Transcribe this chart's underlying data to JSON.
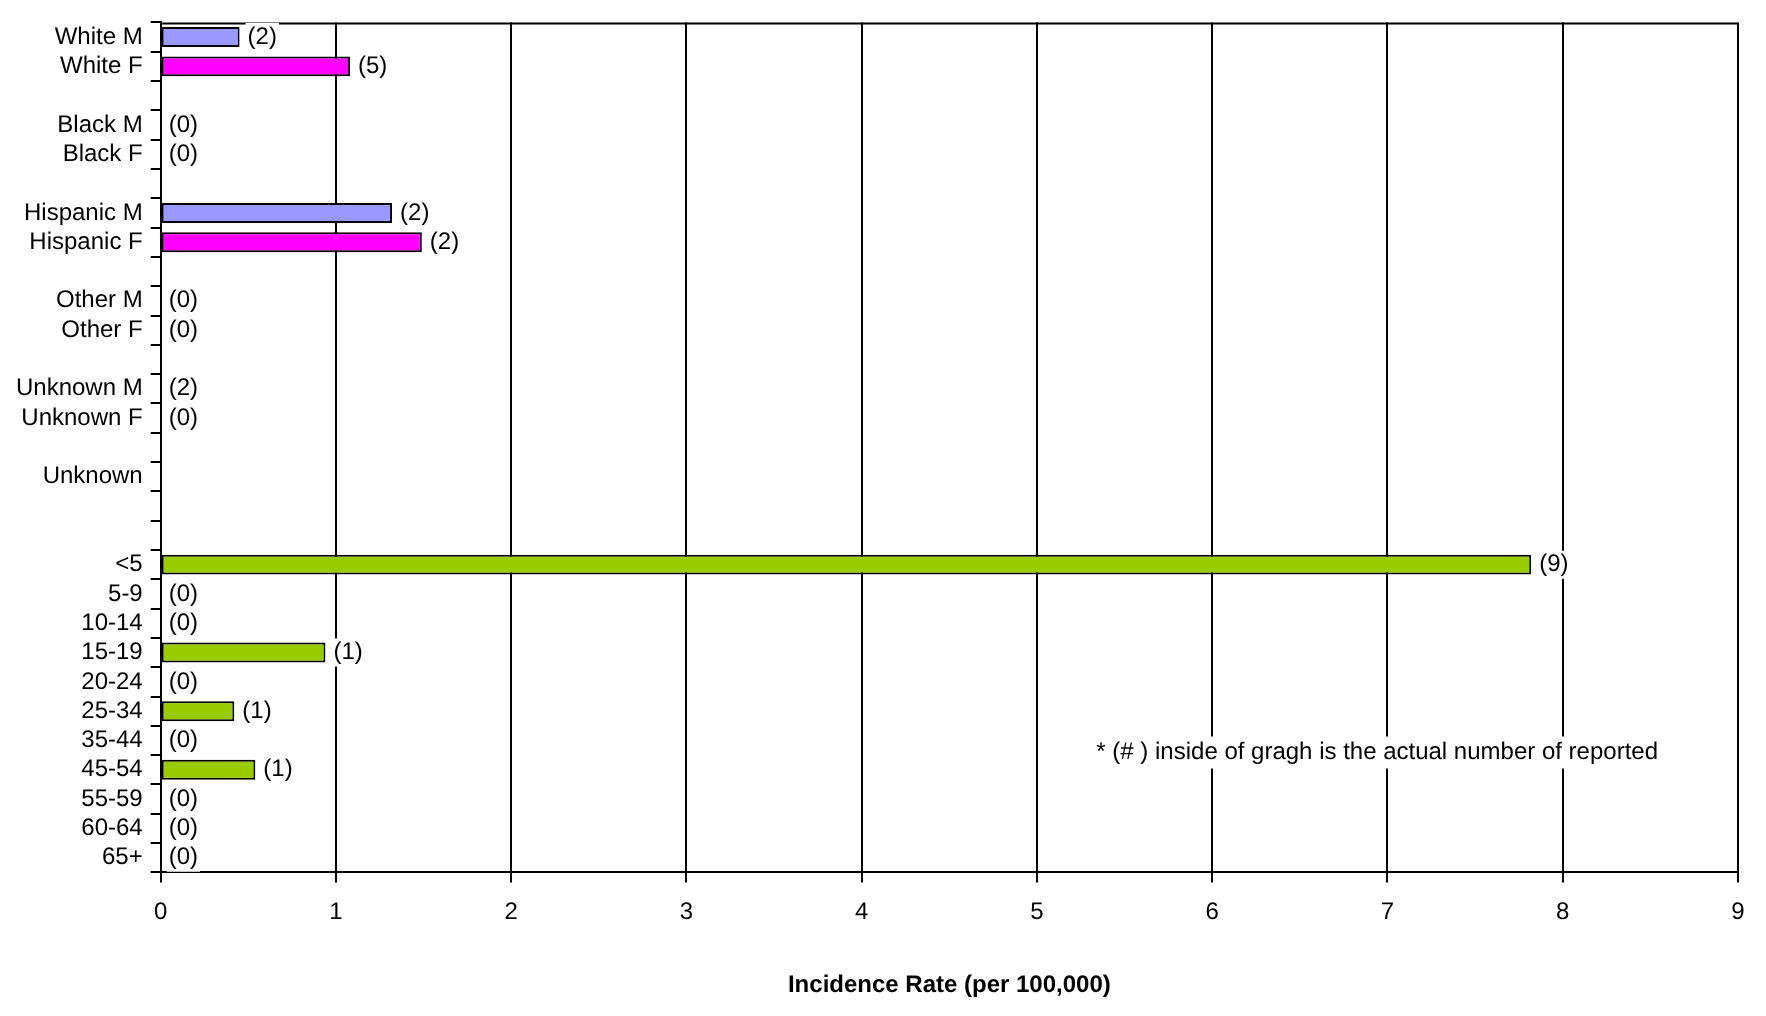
{
  "chart_data": {
    "type": "bar",
    "orientation": "horizontal",
    "xlabel": "Incidence Rate (per 100,000)",
    "categories": [
      "White M",
      "White F",
      null,
      "Black M",
      "Black F",
      null,
      "Hispanic M",
      "Hispanic F",
      null,
      "Other M",
      "Other F",
      null,
      "Unknown M",
      "Unknown F",
      null,
      "Unknown",
      null,
      null,
      "<5",
      "5-9",
      "10-14",
      "15-19",
      "20-24",
      "25-34",
      "35-44",
      "45-54",
      "55-59",
      "60-64",
      "65+"
    ],
    "values": [
      0.45,
      1.08,
      null,
      0,
      0,
      null,
      1.32,
      1.49,
      null,
      0,
      0,
      null,
      0,
      0,
      null,
      null,
      null,
      null,
      7.82,
      0,
      0,
      0.94,
      0,
      0.42,
      0,
      0.54,
      0,
      0,
      0
    ],
    "colors": [
      "#9999ff",
      "#ff00ff",
      null,
      "#9999ff",
      "#ff00ff",
      null,
      "#9999ff",
      "#ff00ff",
      null,
      "#9999ff",
      "#ff00ff",
      null,
      "#9999ff",
      "#ff00ff",
      null,
      "#99cc00",
      null,
      null,
      "#99cc00",
      "#99cc00",
      "#99cc00",
      "#99cc00",
      "#99cc00",
      "#99cc00",
      "#99cc00",
      "#99cc00",
      "#99cc00",
      "#99cc00",
      "#99cc00"
    ],
    "xlim": [
      0,
      9
    ],
    "xticks": [
      0,
      1,
      2,
      3,
      4,
      5,
      6,
      7,
      8,
      9
    ],
    "grid": "x",
    "legend": false,
    "annotations": [
      "* (# ) inside of gragh is the actual number of reported",
      {
        "text": "(2)",
        "x": 0.45,
        "y": "White M"
      },
      {
        "text": "(5)",
        "x": 1.08,
        "y": "White F"
      },
      {
        "text": "(0)",
        "x": 0,
        "y": "Black M"
      },
      {
        "text": "(0)",
        "x": 0,
        "y": "Black F"
      },
      {
        "text": "(2)",
        "x": 1.32,
        "y": "Hispanic M"
      },
      {
        "text": "(2)",
        "x": 1.49,
        "y": "Hispanic F"
      },
      {
        "text": "(0)",
        "x": 0,
        "y": "Other M"
      },
      {
        "text": "(0)",
        "x": 0,
        "y": "Other F"
      },
      {
        "text": "(2)",
        "x": 0,
        "y": "Unknown M"
      },
      {
        "text": "(0)",
        "x": 0,
        "y": "Unknown F"
      },
      {
        "text": "(9)",
        "x": 7.82,
        "y": "<5"
      },
      {
        "text": "(0)",
        "x": 0,
        "y": "5-9"
      },
      {
        "text": "(0)",
        "x": 0,
        "y": "10-14"
      },
      {
        "text": "(1)",
        "x": 0.94,
        "y": "15-19"
      },
      {
        "text": "(0)",
        "x": 0,
        "y": "20-24"
      },
      {
        "text": "(1)",
        "x": 0.42,
        "y": "25-34"
      },
      {
        "text": "(0)",
        "x": 0,
        "y": "35-44"
      },
      {
        "text": "(1)",
        "x": 0.54,
        "y": "45-54"
      },
      {
        "text": "(0)",
        "x": 0,
        "y": "55-59"
      },
      {
        "text": "(0)",
        "x": 0,
        "y": "60-64"
      },
      {
        "text": "(0)",
        "x": 0,
        "y": "65+"
      }
    ]
  }
}
